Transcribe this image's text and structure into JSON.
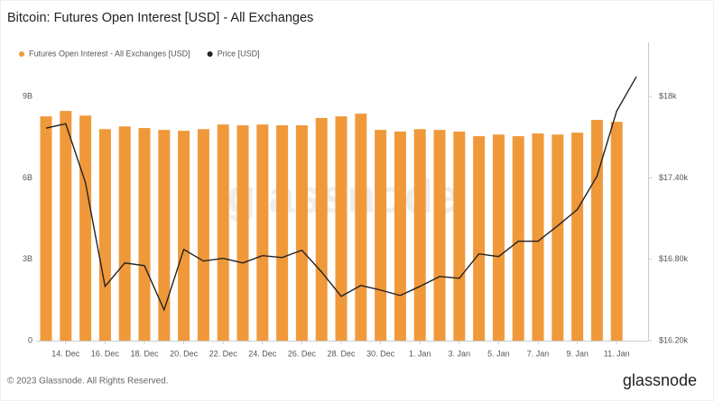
{
  "chart_data": {
    "type": "combo",
    "title": "Bitcoin: Futures Open Interest [USD] - All Exchanges",
    "watermark": "glassnode",
    "footer": "© 2023 Glassnode. All Rights Reserved.",
    "brand": "glassnode",
    "categories": [
      null,
      "14. Dec",
      null,
      "16. Dec",
      null,
      "18. Dec",
      null,
      "20. Dec",
      null,
      "22. Dec",
      null,
      "24. Dec",
      null,
      "26. Dec",
      null,
      "28. Dec",
      null,
      "30. Dec",
      null,
      "1. Jan",
      null,
      "3. Jan",
      null,
      "5. Jan",
      null,
      "7. Jan",
      null,
      "9. Jan",
      null,
      "11. Jan",
      null
    ],
    "series": [
      {
        "name": "Futures Open Interest - All Exchanges [USD]",
        "type": "bar",
        "color": "#f0993b",
        "axis": "y",
        "values": [
          8270000000,
          8470000000,
          8300000000,
          7800000000,
          7900000000,
          7840000000,
          7770000000,
          7740000000,
          7800000000,
          7970000000,
          7940000000,
          7970000000,
          7940000000,
          7940000000,
          8210000000,
          8270000000,
          8370000000,
          7770000000,
          7710000000,
          7800000000,
          7770000000,
          7710000000,
          7540000000,
          7600000000,
          7540000000,
          7640000000,
          7600000000,
          7670000000,
          8140000000,
          8070000000,
          null
        ]
      },
      {
        "name": "Price [USD]",
        "type": "line",
        "color": "#222222",
        "axis": "y2",
        "values": [
          17767,
          17800,
          17367,
          16600,
          16773,
          16753,
          16427,
          16873,
          16787,
          16807,
          16773,
          16827,
          16813,
          16867,
          16707,
          16527,
          16607,
          16573,
          16533,
          16600,
          16673,
          16660,
          16840,
          16820,
          16933,
          16933,
          17047,
          17167,
          17413,
          17893,
          18147
        ]
      }
    ],
    "ylim": [
      0,
      11000000000
    ],
    "yticks": [
      0,
      {
        "value": 3000000000,
        "label": "3B"
      },
      {
        "value": 6000000000,
        "label": "6B"
      },
      {
        "value": 9000000000,
        "label": "9B"
      }
    ],
    "y2lim": [
      16200,
      18400
    ],
    "y2ticks": [
      {
        "value": 16200,
        "label": "$16.20k"
      },
      {
        "value": 16800,
        "label": "$16.80k"
      },
      {
        "value": 17400,
        "label": "$17.40k"
      },
      {
        "value": 18000,
        "label": "$18k"
      }
    ],
    "grid": false
  }
}
